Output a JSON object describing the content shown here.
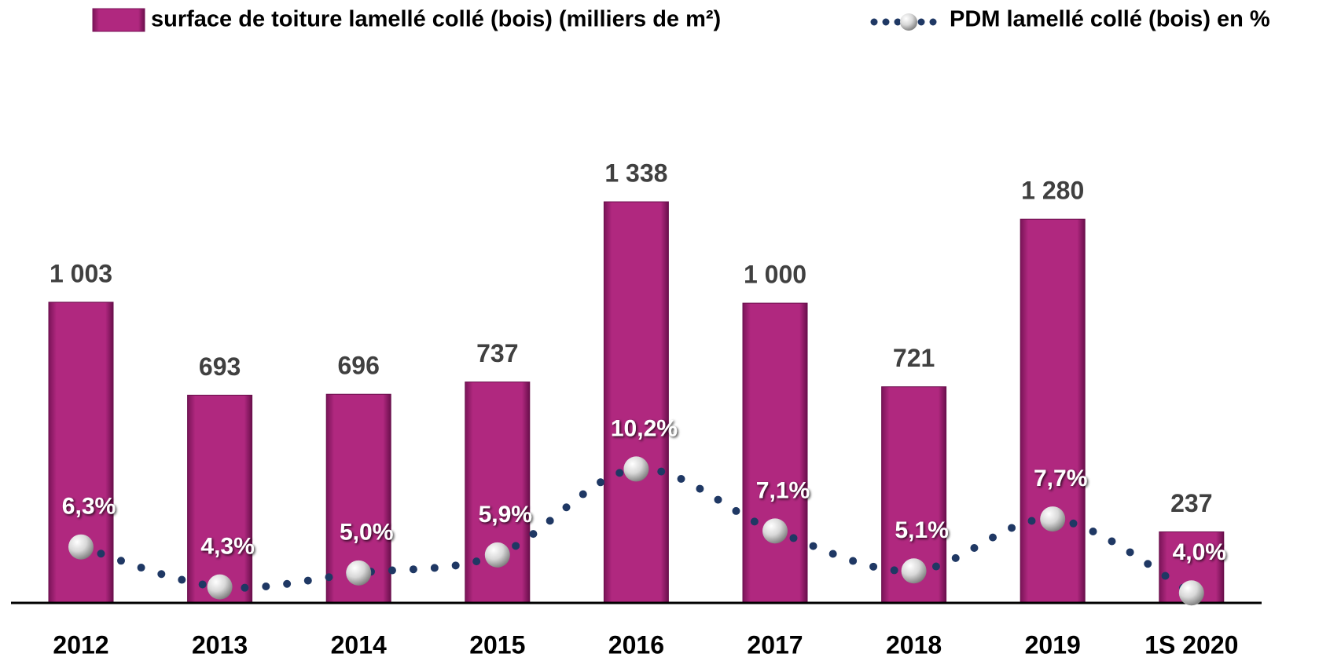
{
  "chart_data": {
    "type": "bar",
    "categories": [
      "2012",
      "2013",
      "2014",
      "2015",
      "2016",
      "2017",
      "2018",
      "2019",
      "1S 2020"
    ],
    "series": [
      {
        "name": "surface de toiture lamellé collé (bois) (milliers de m²)",
        "type": "bar",
        "color": "#b0287f",
        "values": [
          1003,
          693,
          696,
          737,
          1338,
          1000,
          721,
          1280,
          237
        ],
        "value_labels": [
          "1 003",
          "693",
          "696",
          "737",
          "1 338",
          "1 000",
          "721",
          "1 280",
          "237"
        ]
      },
      {
        "name": "PDM lamellé collé (bois) en %",
        "type": "line",
        "axis": "y2",
        "color": "#1f3864",
        "values": [
          6.3,
          4.3,
          5.0,
          5.9,
          10.2,
          7.1,
          5.1,
          7.7,
          4.0
        ],
        "value_labels": [
          "6,3%",
          "4,3%",
          "5,0%",
          "5,9%",
          "10,2%",
          "7,1%",
          "5,1%",
          "7,7%",
          "4,0%"
        ]
      }
    ],
    "ylim": [
      0,
      1600
    ],
    "y2lim": [
      3.5,
      27.5
    ],
    "legend": "top"
  }
}
